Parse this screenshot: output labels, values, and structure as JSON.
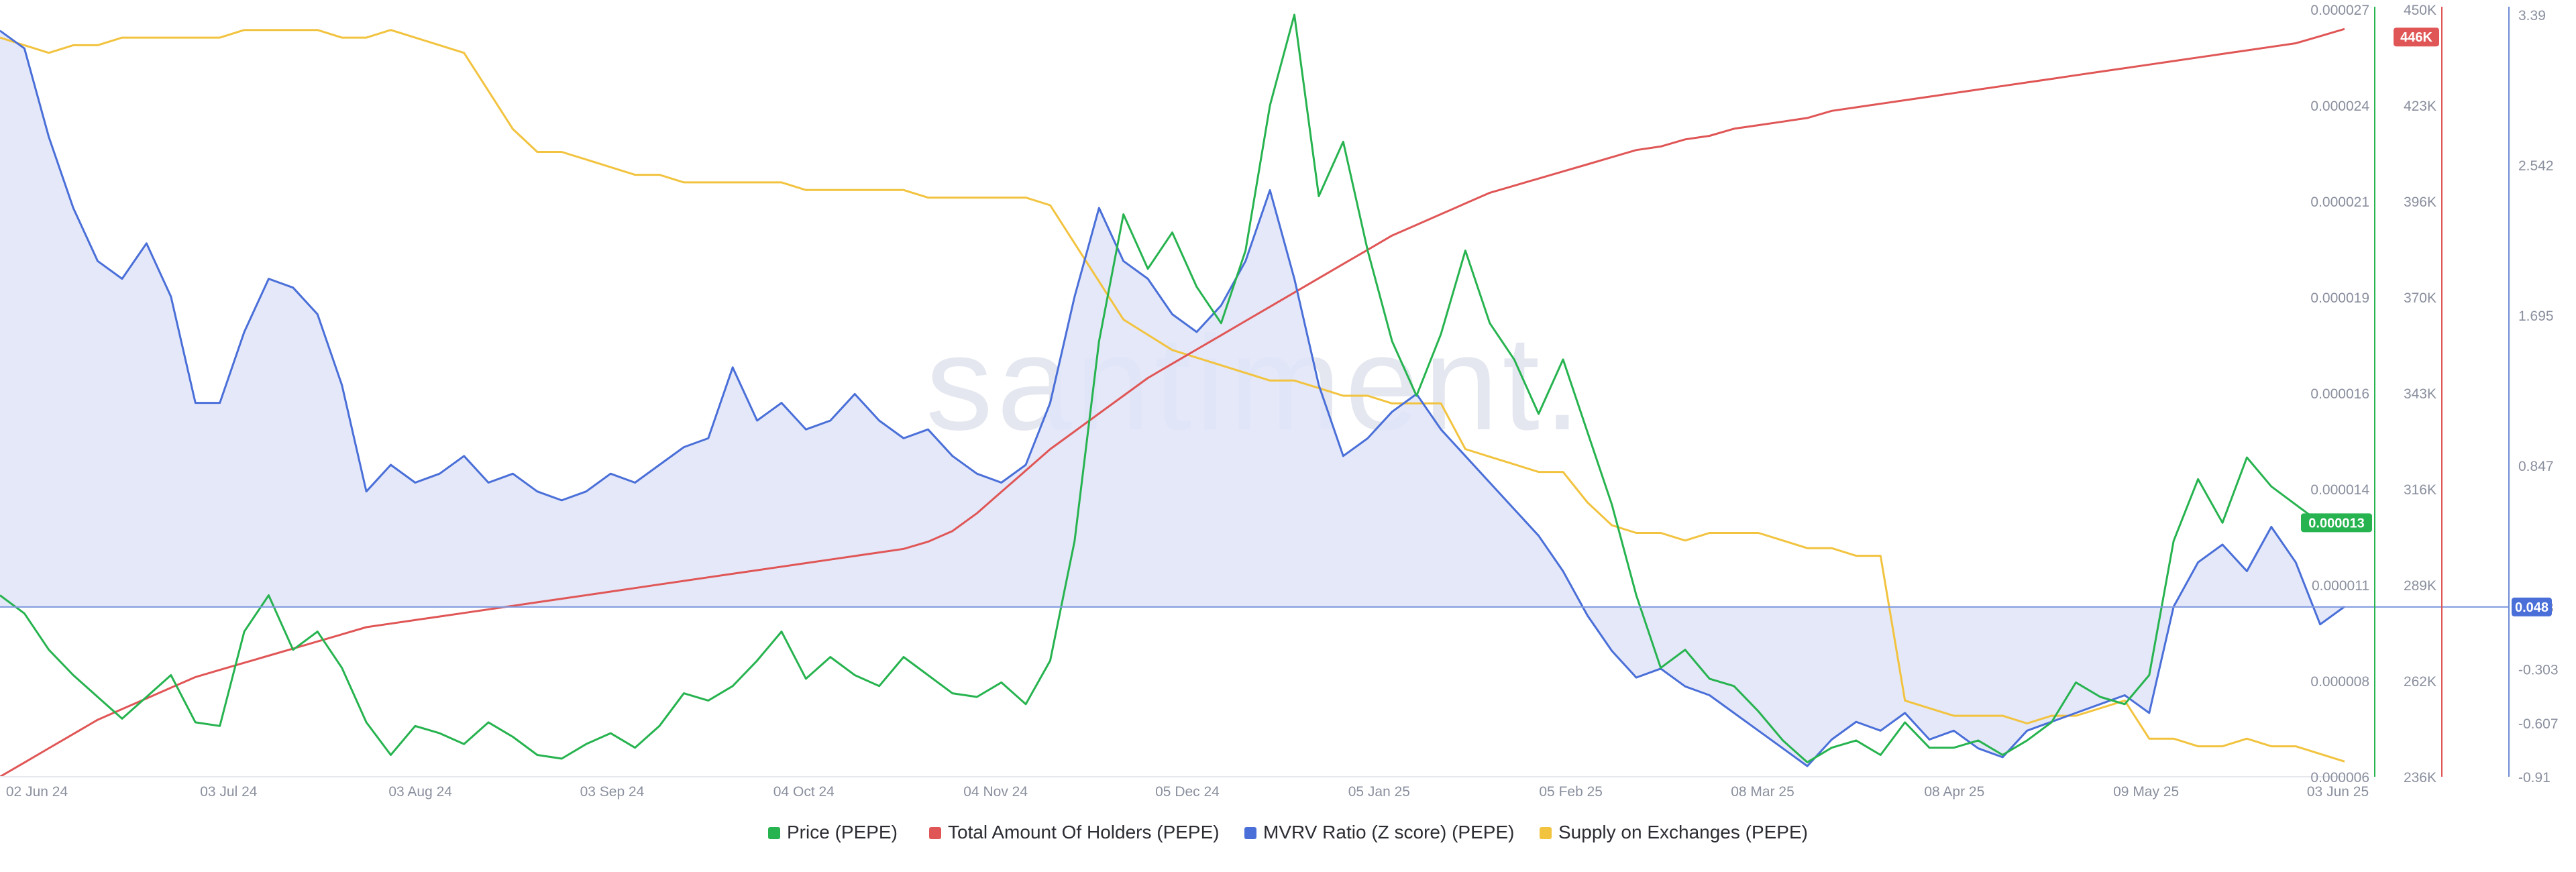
{
  "watermark": "santiment.",
  "chart_data": {
    "type": "line",
    "x_labels": [
      "02 Jun 24",
      "03 Jul 24",
      "03 Aug 24",
      "03 Sep 24",
      "04 Oct 24",
      "04 Nov 24",
      "05 Dec 24",
      "05 Jan 25",
      "05 Feb 25",
      "08 Mar 25",
      "08 Apr 25",
      "09 May 25",
      "03 Jun 25"
    ],
    "axes": {
      "price": {
        "ticks": [
          "0.000027",
          "0.000024",
          "0.000021",
          "0.000019",
          "0.000016",
          "0.000014",
          "0.000011",
          "0.000008",
          "0.000006"
        ],
        "range": [
          6e-06,
          2.7e-05
        ],
        "current_label": "0.000013",
        "current": 1.3e-05
      },
      "holders": {
        "ticks": [
          "450K",
          "423K",
          "396K",
          "370K",
          "343K",
          "316K",
          "289K",
          "262K",
          "236K"
        ],
        "range": [
          236000,
          450000
        ],
        "current_label": "446K",
        "current": 446000
      },
      "mvrv": {
        "ticks": [
          "3.39",
          "2.542",
          "1.695",
          "0.847",
          "0.048",
          "-0.303",
          "-0.607",
          "-0.91"
        ],
        "range": [
          -0.91,
          3.39
        ],
        "current_label": "0.048",
        "current": 0.048,
        "tick_values": [
          3.39,
          2.542,
          1.695,
          0.847,
          0.048,
          -0.303,
          -0.607,
          -0.91
        ]
      },
      "supply": {
        "note": "no axis shown"
      }
    },
    "series": [
      {
        "name": "Price (PEPE)",
        "color": "#27b34f",
        "axis": "price",
        "values": [
          1.1e-05,
          1.05e-05,
          9.5e-06,
          8.8e-06,
          8.2e-06,
          7.6e-06,
          8.2e-06,
          8.8e-06,
          7.5e-06,
          7.4e-06,
          1e-05,
          1.1e-05,
          9.5e-06,
          1e-05,
          9e-06,
          7.5e-06,
          6.6e-06,
          7.4e-06,
          7.2e-06,
          6.9e-06,
          7.5e-06,
          7.1e-06,
          6.6e-06,
          6.5e-06,
          6.9e-06,
          7.2e-06,
          6.8e-06,
          7.4e-06,
          8.3e-06,
          8.1e-06,
          8.5e-06,
          9.2e-06,
          1e-05,
          8.7e-06,
          9.3e-06,
          8.8e-06,
          8.5e-06,
          9.3e-06,
          8.8e-06,
          8.3e-06,
          8.2e-06,
          8.6e-06,
          8e-06,
          9.2e-06,
          1.25e-05,
          1.8e-05,
          2.15e-05,
          2e-05,
          2.1e-05,
          1.95e-05,
          1.85e-05,
          2.05e-05,
          2.45e-05,
          2.7e-05,
          2.2e-05,
          2.35e-05,
          2.05e-05,
          1.8e-05,
          1.65e-05,
          1.82e-05,
          2.05e-05,
          1.85e-05,
          1.75e-05,
          1.6e-05,
          1.75e-05,
          1.55e-05,
          1.35e-05,
          1.1e-05,
          9e-06,
          9.5e-06,
          8.7e-06,
          8.5e-06,
          7.8e-06,
          7e-06,
          6.4e-06,
          6.8e-06,
          7e-06,
          6.6e-06,
          7.5e-06,
          6.8e-06,
          6.8e-06,
          7e-06,
          6.6e-06,
          7e-06,
          7.5e-06,
          8.6e-06,
          8.2e-06,
          8e-06,
          8.8e-06,
          1.25e-05,
          1.42e-05,
          1.3e-05,
          1.48e-05,
          1.4e-05,
          1.35e-05,
          1.3e-05,
          1.3e-05
        ]
      },
      {
        "name": "Total Amount Of Holders (PEPE)",
        "color": "#e05656",
        "axis": "holders",
        "values": [
          236000,
          240000,
          244000,
          248000,
          252000,
          255000,
          258000,
          261000,
          264000,
          266000,
          268000,
          270000,
          272000,
          274000,
          276000,
          278000,
          279000,
          280000,
          281000,
          282000,
          283000,
          284000,
          285000,
          286000,
          287000,
          288000,
          289000,
          290000,
          291000,
          292000,
          293000,
          294000,
          295000,
          296000,
          297000,
          298000,
          299000,
          300000,
          302000,
          305000,
          310000,
          316000,
          322000,
          328000,
          333000,
          338000,
          343000,
          348000,
          352000,
          356000,
          360000,
          364000,
          368000,
          372000,
          376000,
          380000,
          384000,
          388000,
          391000,
          394000,
          397000,
          400000,
          402000,
          404000,
          406000,
          408000,
          410000,
          412000,
          413000,
          415000,
          416000,
          418000,
          419000,
          420000,
          421000,
          423000,
          424000,
          425000,
          426000,
          427000,
          428000,
          429000,
          430000,
          431000,
          432000,
          433000,
          434000,
          435000,
          436000,
          437000,
          438000,
          439000,
          440000,
          441000,
          442000,
          444000,
          446000
        ]
      },
      {
        "name": "MVRV Ratio (Z score) (PEPE)",
        "color": "#4a6fd8",
        "axis": "mvrv",
        "values": [
          3.3,
          3.2,
          2.7,
          2.3,
          2.0,
          1.9,
          2.1,
          1.8,
          1.2,
          1.2,
          1.6,
          1.9,
          1.85,
          1.7,
          1.3,
          0.7,
          0.85,
          0.75,
          0.8,
          0.9,
          0.75,
          0.8,
          0.7,
          0.65,
          0.7,
          0.8,
          0.75,
          0.85,
          0.95,
          1.0,
          1.4,
          1.1,
          1.2,
          1.05,
          1.1,
          1.25,
          1.1,
          1.0,
          1.05,
          0.9,
          0.8,
          0.75,
          0.85,
          1.2,
          1.8,
          2.3,
          2.0,
          1.9,
          1.7,
          1.6,
          1.75,
          2.0,
          2.4,
          1.9,
          1.3,
          0.9,
          1.0,
          1.15,
          1.25,
          1.05,
          0.9,
          0.75,
          0.6,
          0.45,
          0.25,
          0.0,
          -0.2,
          -0.35,
          -0.3,
          -0.4,
          -0.45,
          -0.55,
          -0.65,
          -0.75,
          -0.85,
          -0.7,
          -0.6,
          -0.65,
          -0.55,
          -0.7,
          -0.65,
          -0.75,
          -0.8,
          -0.65,
          -0.6,
          -0.55,
          -0.5,
          -0.45,
          -0.55,
          0.05,
          0.3,
          0.4,
          0.25,
          0.5,
          0.3,
          -0.05,
          0.05
        ]
      },
      {
        "name": "Supply on Exchanges (PEPE)",
        "color": "#f2c33f",
        "axis": "hidden",
        "values": [
          0.97,
          0.96,
          0.95,
          0.96,
          0.96,
          0.97,
          0.97,
          0.97,
          0.97,
          0.97,
          0.98,
          0.98,
          0.98,
          0.98,
          0.97,
          0.97,
          0.98,
          0.97,
          0.96,
          0.95,
          0.9,
          0.85,
          0.82,
          0.82,
          0.81,
          0.8,
          0.79,
          0.79,
          0.78,
          0.78,
          0.78,
          0.78,
          0.78,
          0.77,
          0.77,
          0.77,
          0.77,
          0.77,
          0.76,
          0.76,
          0.76,
          0.76,
          0.76,
          0.75,
          0.7,
          0.65,
          0.6,
          0.58,
          0.56,
          0.55,
          0.54,
          0.53,
          0.52,
          0.52,
          0.51,
          0.5,
          0.5,
          0.49,
          0.49,
          0.49,
          0.43,
          0.42,
          0.41,
          0.4,
          0.4,
          0.36,
          0.33,
          0.32,
          0.32,
          0.31,
          0.32,
          0.32,
          0.32,
          0.31,
          0.3,
          0.3,
          0.29,
          0.29,
          0.1,
          0.09,
          0.08,
          0.08,
          0.08,
          0.07,
          0.08,
          0.08,
          0.09,
          0.1,
          0.05,
          0.05,
          0.04,
          0.04,
          0.05,
          0.04,
          0.04,
          0.03,
          0.02
        ]
      }
    ]
  },
  "legend": [
    {
      "label": "Price (PEPE)",
      "color": "#27b34f"
    },
    {
      "label": "Total Amount Of Holders (PEPE)",
      "color": "#e05656"
    },
    {
      "label": "MVRV Ratio (Z score) (PEPE)",
      "color": "#4a6fd8"
    },
    {
      "label": "Supply on Exchanges (PEPE)",
      "color": "#f2c33f"
    }
  ]
}
